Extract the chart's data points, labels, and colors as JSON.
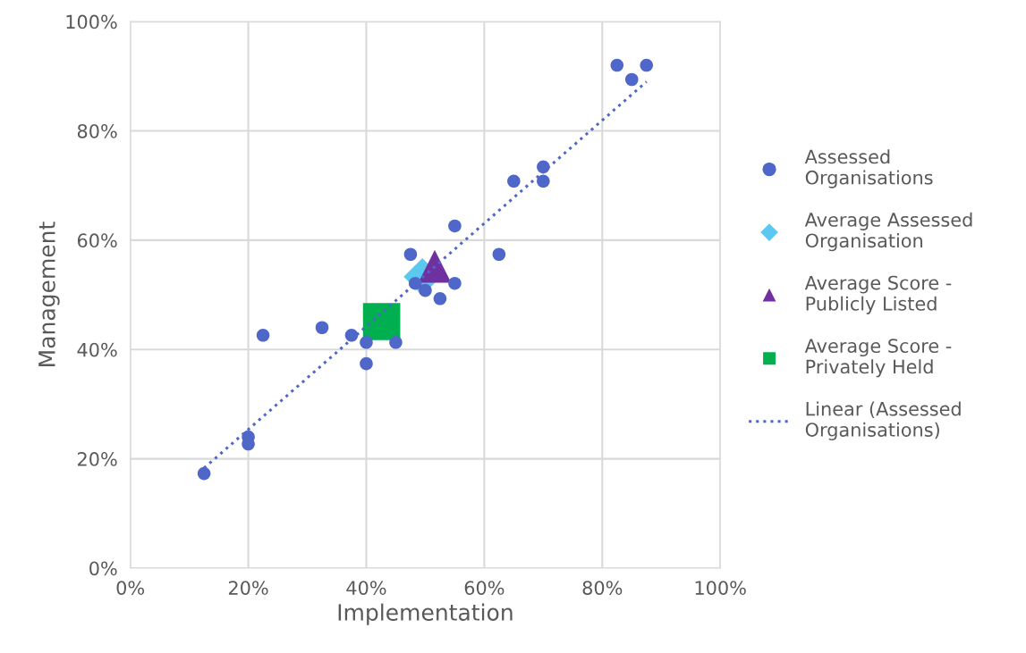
{
  "chart_data": {
    "type": "scatter",
    "xlabel": "Implementation",
    "ylabel": "Management",
    "xlim": [
      0,
      100
    ],
    "ylim": [
      0,
      100
    ],
    "xticks": [
      {
        "value": 0,
        "label": "0%"
      },
      {
        "value": 20,
        "label": "20%"
      },
      {
        "value": 40,
        "label": "40%"
      },
      {
        "value": 60,
        "label": "60%"
      },
      {
        "value": 80,
        "label": "80%"
      },
      {
        "value": 100,
        "label": "100%"
      }
    ],
    "yticks": [
      {
        "value": 0,
        "label": "0%"
      },
      {
        "value": 20,
        "label": "20%"
      },
      {
        "value": 40,
        "label": "40%"
      },
      {
        "value": 60,
        "label": "60%"
      },
      {
        "value": 80,
        "label": "80%"
      },
      {
        "value": 100,
        "label": "100%"
      }
    ],
    "grid": true,
    "legend": "right",
    "series": [
      {
        "name": "Assessed Organisations",
        "color": "#4e67c8",
        "marker": "circle",
        "x": [
          12.5,
          20,
          20,
          22.5,
          32.5,
          37.5,
          40,
          40,
          45,
          47.5,
          48.3,
          50,
          52.5,
          55,
          55,
          62.5,
          65,
          70,
          70,
          82.5,
          85,
          87.5
        ],
        "values": [
          17.3,
          24.0,
          22.7,
          42.6,
          44.0,
          42.6,
          41.3,
          37.4,
          41.3,
          57.4,
          52.1,
          50.8,
          49.3,
          52.1,
          62.6,
          57.4,
          70.8,
          73.4,
          70.8,
          92.0,
          89.4,
          92.0
        ]
      },
      {
        "name": "Average Assessed Organisation",
        "color": "#5bc8f0",
        "marker": "diamond",
        "x": [
          49.5
        ],
        "values": [
          53.3
        ]
      },
      {
        "name": "Average Score - Publicly Listed",
        "color": "#7030a0",
        "marker": "triangle",
        "x": [
          51.6
        ],
        "values": [
          55.2
        ]
      },
      {
        "name": "Average Score - Privately Held",
        "color": "#00b050",
        "marker": "square",
        "x": [
          42.6
        ],
        "values": [
          45.1
        ]
      },
      {
        "name": "Linear (Assessed Organisations)",
        "type": "line",
        "color": "#4e67c8",
        "line_style": "dotted",
        "marker": "none",
        "x": [
          12.5,
          87.5
        ],
        "values": [
          18.3,
          89.0
        ]
      }
    ]
  }
}
